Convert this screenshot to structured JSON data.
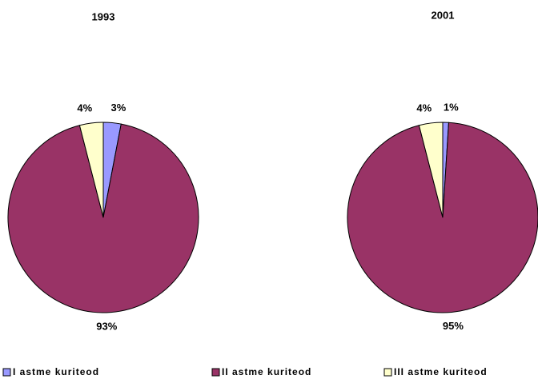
{
  "chart_data": [
    {
      "type": "pie",
      "title": "1993",
      "categories": [
        "I astme kuriteod",
        "II astme kuriteod",
        "III astme kuriteod"
      ],
      "colors": [
        "#9999ff",
        "#993366",
        "#ffffcc"
      ],
      "values": [
        3,
        93,
        4
      ],
      "value_labels": [
        "3%",
        "93%",
        "4%"
      ]
    },
    {
      "type": "pie",
      "title": "2001",
      "values": [
        1,
        95,
        4
      ],
      "value_labels": [
        "1%",
        "95%",
        "4%"
      ]
    }
  ]
}
